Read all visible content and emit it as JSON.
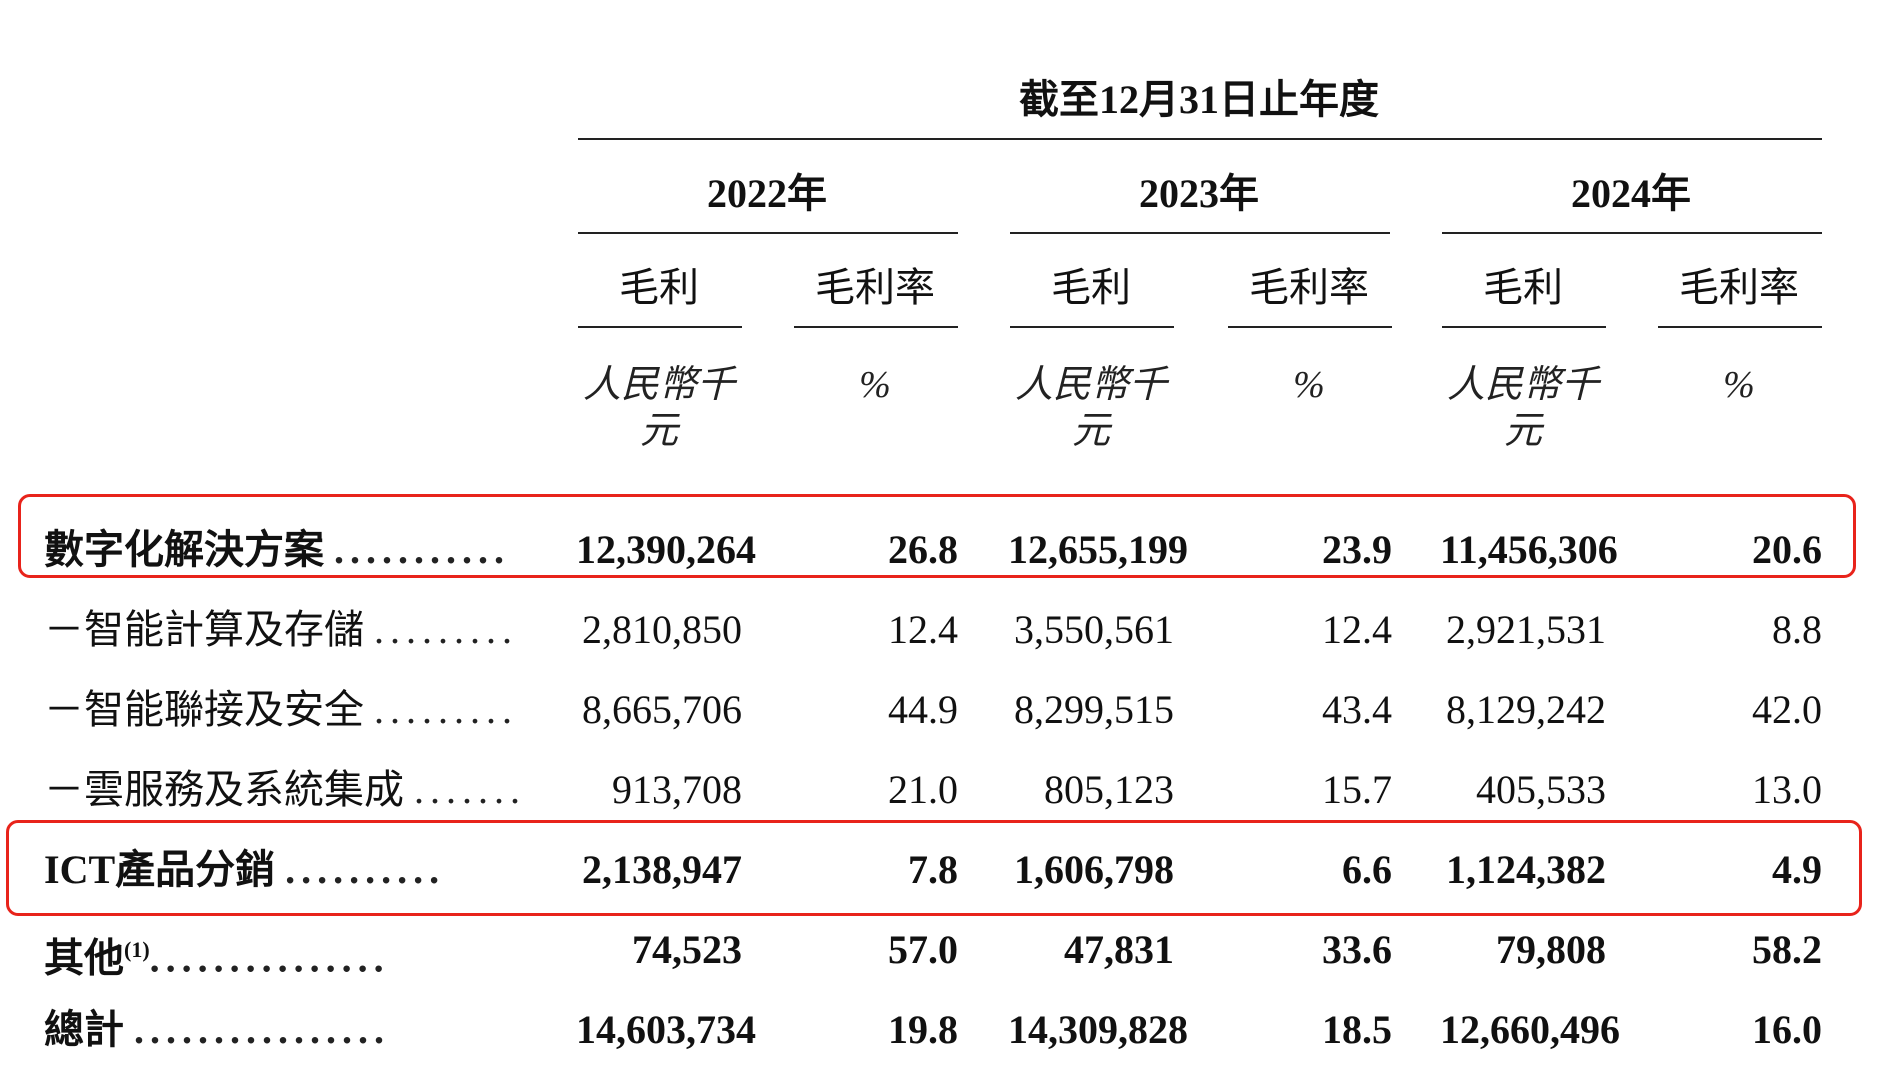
{
  "header": {
    "period": "截至12月31日止年度",
    "years": [
      "2022年",
      "2023年",
      "2024年"
    ],
    "sub_gross_profit": "毛利",
    "sub_margin": "毛利率",
    "unit_currency": "人民幣千元",
    "unit_percent": "%"
  },
  "rows": [
    {
      "label": "數字化解決方案",
      "values": [
        "12,390,264",
        "26.8",
        "12,655,199",
        "23.9",
        "11,456,306",
        "20.6"
      ]
    },
    {
      "label": "－智能計算及存儲",
      "values": [
        "2,810,850",
        "12.4",
        "3,550,561",
        "12.4",
        "2,921,531",
        "8.8"
      ]
    },
    {
      "label": "－智能聯接及安全",
      "values": [
        "8,665,706",
        "44.9",
        "8,299,515",
        "43.4",
        "8,129,242",
        "42.0"
      ]
    },
    {
      "label": "－雲服務及系統集成",
      "values": [
        "913,708",
        "21.0",
        "805,123",
        "15.7",
        "405,533",
        "13.0"
      ]
    },
    {
      "label": "ICT產品分銷",
      "values": [
        "2,138,947",
        "7.8",
        "1,606,798",
        "6.6",
        "1,124,382",
        "4.9"
      ]
    },
    {
      "label": "其他",
      "note": "(1)",
      "values": [
        "74,523",
        "57.0",
        "47,831",
        "33.6",
        "79,808",
        "58.2"
      ]
    },
    {
      "label": "總計",
      "values": [
        "14,603,734",
        "19.8",
        "14,309,828",
        "18.5",
        "12,660,496",
        "16.0"
      ]
    }
  ],
  "dots": {
    "row0": "...........",
    "row1": "..........",
    "row2": "..........",
    "row3": ".........",
    "row4": "..........",
    "row5": "...............",
    "row6": "................"
  },
  "highlight_color": "#e8231b"
}
